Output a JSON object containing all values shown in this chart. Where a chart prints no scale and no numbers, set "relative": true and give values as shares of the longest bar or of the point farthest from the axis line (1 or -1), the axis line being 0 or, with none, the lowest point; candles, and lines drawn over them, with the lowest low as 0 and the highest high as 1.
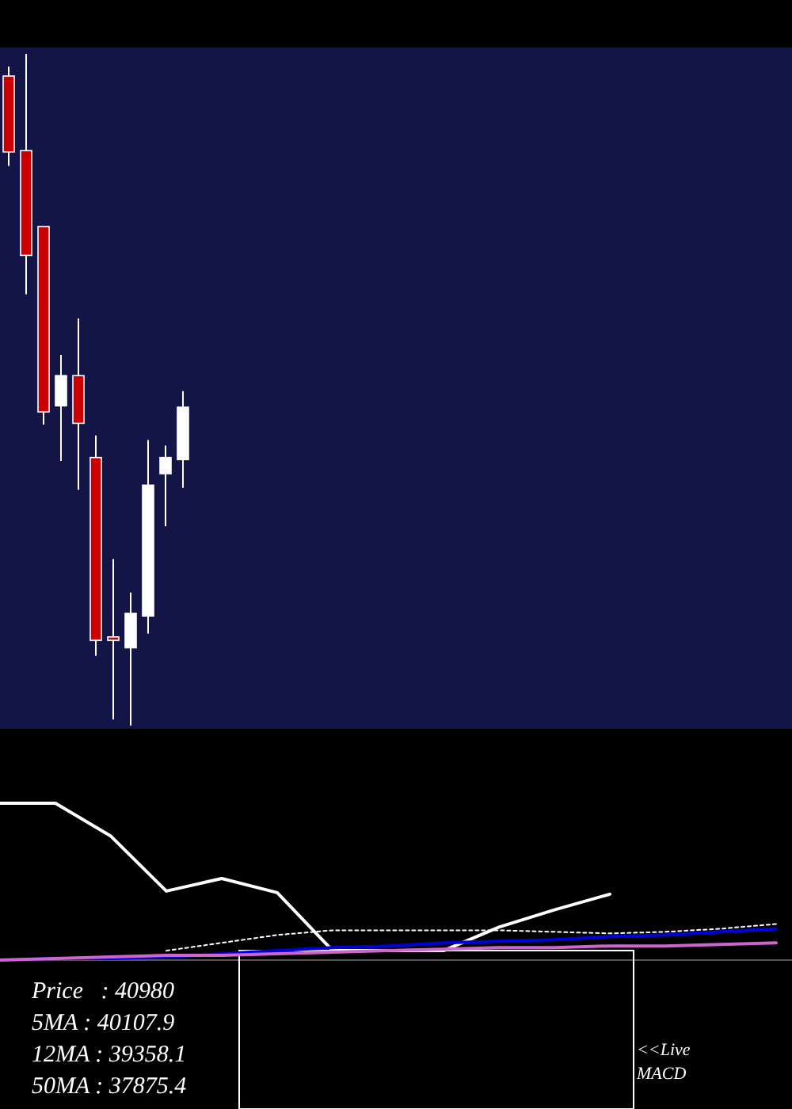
{
  "chart_data": [
    {
      "type": "candlestick",
      "relative": true,
      "categories": [
        null,
        null,
        null,
        null,
        null,
        null,
        null,
        null,
        null,
        null,
        null
      ],
      "ohlc": [
        [
          0.967,
          0.981,
          0.833,
          0.854
        ],
        [
          0.856,
          1,
          0.642,
          0.7
        ],
        [
          0.743,
          0.743,
          0.448,
          0.467
        ],
        [
          0.476,
          0.552,
          0.394,
          0.521
        ],
        [
          0.521,
          0.606,
          0.351,
          0.45
        ],
        [
          0.399,
          0.432,
          0.104,
          0.127
        ],
        [
          0.132,
          0.248,
          0.009,
          0.127
        ],
        [
          0.116,
          0.198,
          0,
          0.167
        ],
        [
          0.163,
          0.425,
          0.137,
          0.358
        ],
        [
          0.375,
          0.417,
          0.297,
          0.399
        ],
        [
          0.396,
          0.498,
          0.354,
          0.474
        ]
      ]
    },
    {
      "type": "line",
      "relative": true,
      "categories": [
        null,
        null,
        null,
        null,
        null,
        null,
        null,
        null,
        null,
        null,
        null,
        null,
        null,
        null,
        null
      ],
      "series": [
        {
          "color": "#ffffff",
          "values": [
            1,
            1,
            0.79,
            0.44,
            0.52,
            0.43,
            0.06,
            0.06,
            0.06,
            0.21,
            0.32,
            0.42,
            null,
            null,
            null
          ]
        },
        {
          "color": "#ffffff",
          "line_style": "dotted",
          "values": [
            null,
            null,
            null,
            0.06,
            0.11,
            0.16,
            0.19,
            0.19,
            0.19,
            0.19,
            0.18,
            0.17,
            0.18,
            0.2,
            0.23
          ]
        },
        {
          "color": "#0000dd",
          "values": [
            0,
            0.01,
            0.01,
            0.02,
            0.04,
            0.06,
            0.08,
            0.09,
            0.11,
            0.12,
            0.13,
            0.15,
            0.16,
            0.18,
            0.2
          ]
        },
        {
          "color": "#cc66cc",
          "values": [
            0,
            0.01,
            0.02,
            0.03,
            0.03,
            0.04,
            0.05,
            0.06,
            0.07,
            0.08,
            0.08,
            0.09,
            0.09,
            0.1,
            0.11
          ]
        }
      ],
      "annotations": [
        "Price   : 40980",
        "5MA : 40107.9",
        "12MA : 39358.1",
        "50MA : 37875.4",
        "<<Live MACD"
      ]
    }
  ]
}
